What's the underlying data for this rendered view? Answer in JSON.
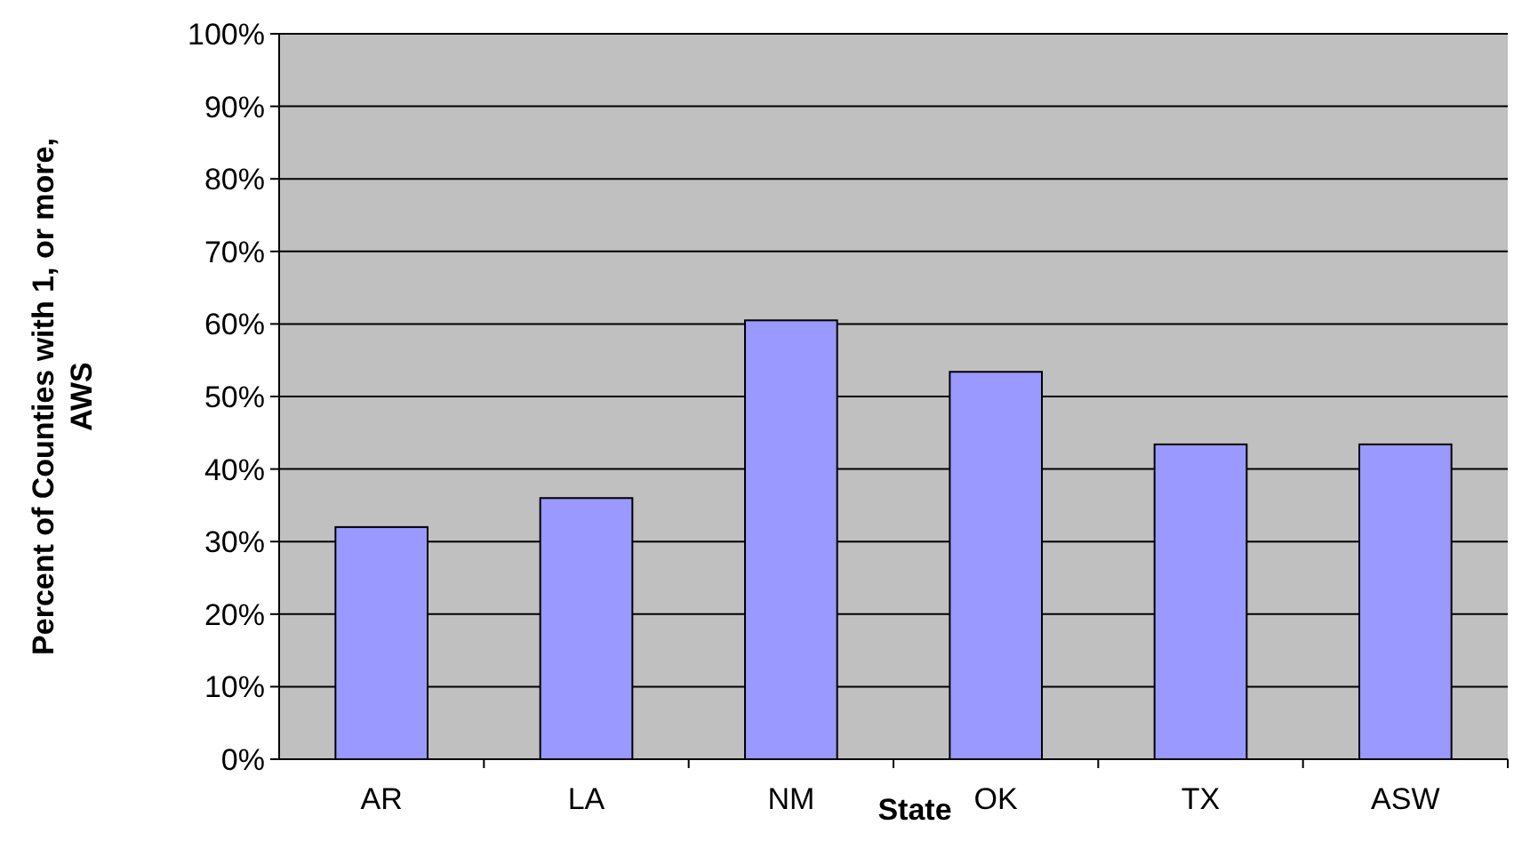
{
  "chart_data": {
    "type": "bar",
    "xlabel": "State",
    "ylabel": "Percent of Counties with 1, or more, AWS",
    "categories": [
      "AR",
      "LA",
      "NM",
      "OK",
      "TX",
      "ASW"
    ],
    "values": [
      32,
      36,
      60.5,
      53.4,
      43.4,
      43.4
    ],
    "color": "#9999ff",
    "ylim": [
      0,
      100
    ],
    "yticks": [
      {
        "value": 0,
        "label": "0%"
      },
      {
        "value": 10,
        "label": "10%"
      },
      {
        "value": 20,
        "label": "20%"
      },
      {
        "value": 30,
        "label": "30%"
      },
      {
        "value": 40,
        "label": "40%"
      },
      {
        "value": 50,
        "label": "50%"
      },
      {
        "value": 60,
        "label": "60%"
      },
      {
        "value": 70,
        "label": "70%"
      },
      {
        "value": 80,
        "label": "80%"
      },
      {
        "value": 90,
        "label": "90%"
      },
      {
        "value": 100,
        "label": "100%"
      }
    ],
    "grid": "y"
  }
}
